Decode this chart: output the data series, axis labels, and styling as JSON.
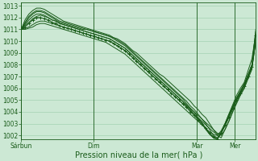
{
  "background_color": "#cce8d4",
  "grid_color": "#99ccaa",
  "line_color": "#1a5c1a",
  "xlabel": "Pression niveau de la mer( hPa )",
  "xlabel_fontsize": 7,
  "ylabel_min": 1002,
  "ylabel_max": 1013,
  "yticks": [
    1002,
    1003,
    1004,
    1005,
    1006,
    1007,
    1008,
    1009,
    1010,
    1011,
    1012,
    1013
  ],
  "xtick_labels": [
    "Sárbun",
    "Dim",
    "Mar",
    "Mer"
  ],
  "xtick_positions": [
    0.0,
    0.31,
    0.75,
    0.91
  ],
  "series": [
    {
      "y": [
        1011.0,
        1011.5,
        1012.0,
        1012.3,
        1012.5,
        1012.5,
        1012.4,
        1012.2,
        1012.0,
        1011.8,
        1011.6,
        1011.5,
        1011.4,
        1011.3,
        1011.2,
        1011.1,
        1011.0,
        1011.0,
        1010.9,
        1010.8,
        1010.7,
        1010.6,
        1010.5,
        1010.4,
        1010.3,
        1010.2,
        1010.0,
        1009.8,
        1009.5,
        1009.2,
        1009.0,
        1008.7,
        1008.4,
        1008.1,
        1007.8,
        1007.5,
        1007.2,
        1007.0,
        1006.7,
        1006.4,
        1006.1,
        1005.8,
        1005.5,
        1005.2,
        1004.9,
        1004.5,
        1004.2,
        1003.8,
        1003.5,
        1003.0,
        1002.5,
        1002.0,
        1001.8,
        1002.5,
        1003.2,
        1004.0,
        1004.8,
        1005.5,
        1006.0,
        1007.0,
        1008.0,
        1010.3
      ],
      "marker": false
    },
    {
      "y": [
        1011.0,
        1011.8,
        1012.3,
        1012.6,
        1012.8,
        1012.8,
        1012.7,
        1012.5,
        1012.3,
        1012.1,
        1011.9,
        1011.7,
        1011.6,
        1011.5,
        1011.4,
        1011.3,
        1011.2,
        1011.1,
        1011.0,
        1010.9,
        1010.8,
        1010.7,
        1010.6,
        1010.5,
        1010.3,
        1010.1,
        1009.9,
        1009.7,
        1009.4,
        1009.1,
        1008.8,
        1008.5,
        1008.2,
        1007.9,
        1007.6,
        1007.3,
        1007.0,
        1006.7,
        1006.4,
        1006.1,
        1005.8,
        1005.5,
        1005.2,
        1004.9,
        1004.5,
        1004.2,
        1003.8,
        1003.4,
        1003.0,
        1002.5,
        1002.0,
        1001.8,
        1002.3,
        1003.0,
        1003.8,
        1004.6,
        1005.4,
        1006.0,
        1006.5,
        1007.5,
        1008.5,
        1010.6
      ],
      "marker": false
    },
    {
      "y": [
        1011.0,
        1011.3,
        1011.6,
        1011.9,
        1012.1,
        1012.2,
        1012.1,
        1012.0,
        1011.8,
        1011.7,
        1011.5,
        1011.4,
        1011.3,
        1011.2,
        1011.1,
        1011.0,
        1010.9,
        1010.8,
        1010.7,
        1010.6,
        1010.5,
        1010.4,
        1010.3,
        1010.2,
        1010.0,
        1009.8,
        1009.6,
        1009.4,
        1009.1,
        1008.8,
        1008.5,
        1008.2,
        1007.9,
        1007.6,
        1007.3,
        1007.0,
        1006.7,
        1006.4,
        1006.1,
        1005.8,
        1005.5,
        1005.2,
        1004.9,
        1004.6,
        1004.3,
        1004.0,
        1003.7,
        1003.4,
        1003.1,
        1002.8,
        1002.5,
        1002.2,
        1002.0,
        1002.5,
        1003.2,
        1004.0,
        1004.7,
        1005.4,
        1006.0,
        1006.8,
        1007.6,
        1010.1
      ],
      "marker": false
    },
    {
      "y": [
        1011.0,
        1011.1,
        1011.2,
        1011.4,
        1011.6,
        1011.7,
        1011.7,
        1011.6,
        1011.5,
        1011.4,
        1011.3,
        1011.2,
        1011.1,
        1011.0,
        1010.9,
        1010.8,
        1010.7,
        1010.6,
        1010.5,
        1010.4,
        1010.3,
        1010.2,
        1010.1,
        1010.0,
        1009.8,
        1009.6,
        1009.4,
        1009.2,
        1008.9,
        1008.6,
        1008.3,
        1008.0,
        1007.7,
        1007.4,
        1007.1,
        1006.8,
        1006.5,
        1006.2,
        1005.9,
        1005.6,
        1005.3,
        1005.0,
        1004.7,
        1004.4,
        1004.1,
        1003.8,
        1003.5,
        1003.2,
        1002.9,
        1002.6,
        1002.3,
        1002.1,
        1002.2,
        1002.8,
        1003.5,
        1004.2,
        1005.0,
        1005.6,
        1006.2,
        1007.0,
        1007.8,
        1010.0
      ],
      "marker": false
    },
    {
      "y": [
        1011.0,
        1011.0,
        1011.1,
        1011.2,
        1011.4,
        1011.5,
        1011.5,
        1011.4,
        1011.3,
        1011.2,
        1011.1,
        1011.0,
        1010.9,
        1010.8,
        1010.7,
        1010.6,
        1010.5,
        1010.4,
        1010.3,
        1010.2,
        1010.1,
        1010.0,
        1009.9,
        1009.7,
        1009.5,
        1009.3,
        1009.1,
        1008.9,
        1008.6,
        1008.3,
        1008.0,
        1007.7,
        1007.4,
        1007.1,
        1006.8,
        1006.5,
        1006.2,
        1005.9,
        1005.6,
        1005.3,
        1005.0,
        1004.7,
        1004.4,
        1004.1,
        1003.8,
        1003.5,
        1003.2,
        1002.9,
        1002.6,
        1002.3,
        1002.1,
        1002.0,
        1002.4,
        1003.0,
        1003.7,
        1004.4,
        1005.1,
        1005.7,
        1006.3,
        1007.0,
        1007.7,
        1010.0
      ],
      "marker": false
    },
    {
      "y": [
        1011.0,
        1011.2,
        1011.5,
        1011.8,
        1012.0,
        1012.0,
        1011.9,
        1011.8,
        1011.6,
        1011.5,
        1011.3,
        1011.2,
        1011.1,
        1011.0,
        1010.9,
        1010.8,
        1010.7,
        1010.6,
        1010.5,
        1010.4,
        1010.3,
        1010.2,
        1010.1,
        1010.0,
        1009.8,
        1009.6,
        1009.4,
        1009.2,
        1008.9,
        1008.6,
        1008.3,
        1008.0,
        1007.7,
        1007.4,
        1007.1,
        1006.8,
        1006.5,
        1006.2,
        1005.9,
        1005.6,
        1005.3,
        1005.0,
        1004.7,
        1004.4,
        1004.0,
        1003.7,
        1003.3,
        1003.0,
        1002.6,
        1002.2,
        1001.9,
        1001.7,
        1002.2,
        1002.9,
        1003.6,
        1004.3,
        1005.0,
        1005.6,
        1006.2,
        1007.0,
        1007.8,
        1010.5
      ],
      "marker": true
    },
    {
      "y": [
        1011.0,
        1011.4,
        1011.8,
        1012.1,
        1012.3,
        1012.3,
        1012.2,
        1012.0,
        1011.8,
        1011.7,
        1011.5,
        1011.4,
        1011.3,
        1011.2,
        1011.1,
        1011.0,
        1010.9,
        1010.8,
        1010.7,
        1010.6,
        1010.5,
        1010.4,
        1010.3,
        1010.2,
        1010.0,
        1009.8,
        1009.6,
        1009.4,
        1009.1,
        1008.8,
        1008.5,
        1008.2,
        1007.9,
        1007.6,
        1007.3,
        1007.0,
        1006.7,
        1006.4,
        1006.1,
        1005.8,
        1005.5,
        1005.2,
        1004.9,
        1004.5,
        1004.2,
        1003.8,
        1003.4,
        1003.0,
        1002.5,
        1002.1,
        1001.8,
        1001.7,
        1002.2,
        1003.0,
        1003.8,
        1004.5,
        1005.2,
        1005.8,
        1006.4,
        1007.2,
        1008.0,
        1010.8
      ],
      "marker": false
    },
    {
      "y": [
        1011.0,
        1011.6,
        1012.1,
        1012.4,
        1012.6,
        1012.6,
        1012.5,
        1012.3,
        1012.1,
        1011.9,
        1011.7,
        1011.6,
        1011.5,
        1011.4,
        1011.3,
        1011.2,
        1011.1,
        1011.0,
        1010.9,
        1010.8,
        1010.7,
        1010.6,
        1010.5,
        1010.4,
        1010.2,
        1010.0,
        1009.8,
        1009.6,
        1009.3,
        1009.0,
        1008.7,
        1008.4,
        1008.1,
        1007.8,
        1007.5,
        1007.2,
        1006.9,
        1006.6,
        1006.3,
        1006.0,
        1005.7,
        1005.4,
        1005.1,
        1004.7,
        1004.3,
        1004.0,
        1003.5,
        1003.1,
        1002.6,
        1002.1,
        1001.8,
        1001.7,
        1002.2,
        1002.9,
        1003.6,
        1004.4,
        1005.1,
        1005.7,
        1006.3,
        1007.1,
        1007.9,
        1011.0
      ],
      "marker": false
    }
  ]
}
